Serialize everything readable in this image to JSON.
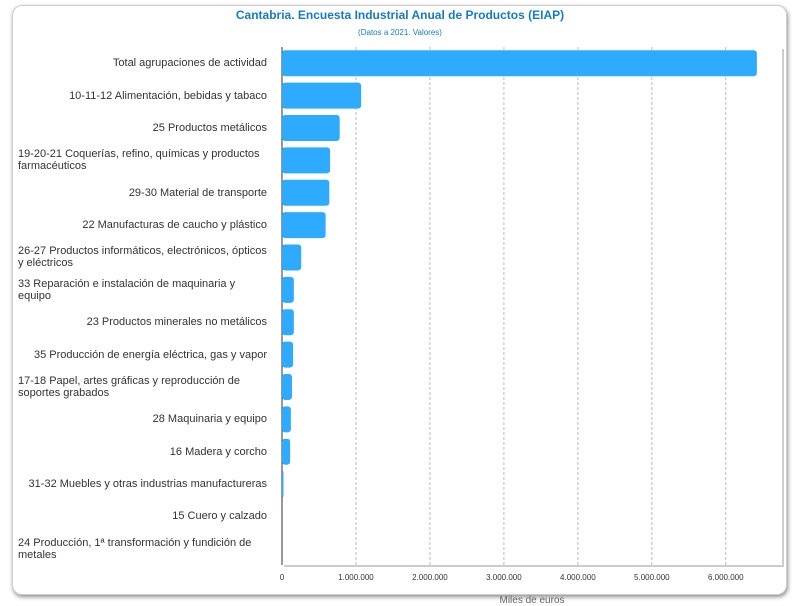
{
  "chart_data": {
    "type": "bar",
    "orientation": "horizontal",
    "title": "Cantabria. Encuesta Industrial Anual de Productos (EIAP)",
    "subtitle": "(Datos a 2021. Valores)",
    "xlabel": "Miles de euros",
    "ylabel": "",
    "xlim": [
      0,
      6760000
    ],
    "xticks": [
      "0",
      "1.000.000",
      "2.000.000",
      "3.000.000",
      "4.000.000",
      "5.000.000",
      "6.000.000"
    ],
    "grid": true,
    "color": "#2eaaff",
    "categories": [
      "Total agrupaciones de actividad",
      "10-11-12 Alimentación, bebidas y tabaco",
      "25 Productos metálicos",
      "19-20-21 Coquerías, refino, químicas y productos farmacéuticos",
      "29-30 Material de transporte",
      "22 Manufacturas de caucho y plástico",
      "26-27 Productos informáticos, electrónicos, ópticos y eléctricos",
      "33 Reparación e instalación de maquinaria y equipo",
      "23 Productos minerales no metálicos",
      "35 Producción de energía eléctrica, gas y vapor",
      "17-18 Papel, artes gráficas y reproducción de soportes grabados",
      "28 Maquinaria y equipo",
      "16 Madera y corcho",
      "31-32 Muebles y otras industrias manufactureras",
      "15 Cuero y calzado",
      "24 Producción, 1ª transformación y fundición de metales"
    ],
    "values": [
      6420000,
      1070000,
      780000,
      650000,
      640000,
      590000,
      260000,
      160000,
      160000,
      150000,
      135000,
      120000,
      110000,
      20000,
      0,
      0
    ]
  }
}
